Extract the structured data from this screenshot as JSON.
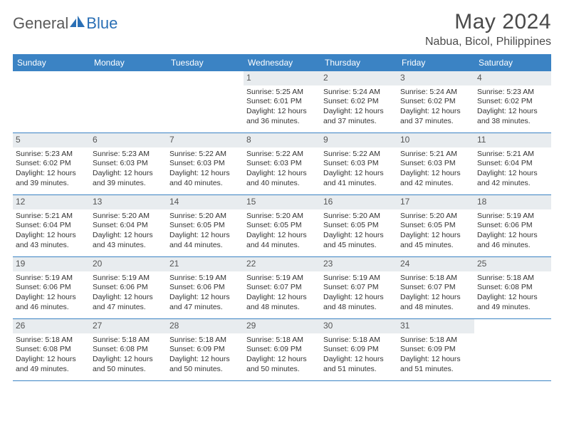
{
  "logo": {
    "text1": "General",
    "text2": "Blue"
  },
  "title": "May 2024",
  "location": "Nabua, Bicol, Philippines",
  "colors": {
    "header_bg": "#3b83c4",
    "header_text": "#ffffff",
    "daynum_bg": "#e8ecef",
    "border": "#3b83c4",
    "text": "#333333",
    "title_text": "#4a4a4a",
    "logo_gray": "#5a5a5a",
    "logo_blue": "#2a6fb5"
  },
  "weekdays": [
    "Sunday",
    "Monday",
    "Tuesday",
    "Wednesday",
    "Thursday",
    "Friday",
    "Saturday"
  ],
  "weeks": [
    [
      {
        "empty": true
      },
      {
        "empty": true
      },
      {
        "empty": true
      },
      {
        "n": "1",
        "sunrise": "Sunrise: 5:25 AM",
        "sunset": "Sunset: 6:01 PM",
        "d1": "Daylight: 12 hours",
        "d2": "and 36 minutes."
      },
      {
        "n": "2",
        "sunrise": "Sunrise: 5:24 AM",
        "sunset": "Sunset: 6:02 PM",
        "d1": "Daylight: 12 hours",
        "d2": "and 37 minutes."
      },
      {
        "n": "3",
        "sunrise": "Sunrise: 5:24 AM",
        "sunset": "Sunset: 6:02 PM",
        "d1": "Daylight: 12 hours",
        "d2": "and 37 minutes."
      },
      {
        "n": "4",
        "sunrise": "Sunrise: 5:23 AM",
        "sunset": "Sunset: 6:02 PM",
        "d1": "Daylight: 12 hours",
        "d2": "and 38 minutes."
      }
    ],
    [
      {
        "n": "5",
        "sunrise": "Sunrise: 5:23 AM",
        "sunset": "Sunset: 6:02 PM",
        "d1": "Daylight: 12 hours",
        "d2": "and 39 minutes."
      },
      {
        "n": "6",
        "sunrise": "Sunrise: 5:23 AM",
        "sunset": "Sunset: 6:03 PM",
        "d1": "Daylight: 12 hours",
        "d2": "and 39 minutes."
      },
      {
        "n": "7",
        "sunrise": "Sunrise: 5:22 AM",
        "sunset": "Sunset: 6:03 PM",
        "d1": "Daylight: 12 hours",
        "d2": "and 40 minutes."
      },
      {
        "n": "8",
        "sunrise": "Sunrise: 5:22 AM",
        "sunset": "Sunset: 6:03 PM",
        "d1": "Daylight: 12 hours",
        "d2": "and 40 minutes."
      },
      {
        "n": "9",
        "sunrise": "Sunrise: 5:22 AM",
        "sunset": "Sunset: 6:03 PM",
        "d1": "Daylight: 12 hours",
        "d2": "and 41 minutes."
      },
      {
        "n": "10",
        "sunrise": "Sunrise: 5:21 AM",
        "sunset": "Sunset: 6:03 PM",
        "d1": "Daylight: 12 hours",
        "d2": "and 42 minutes."
      },
      {
        "n": "11",
        "sunrise": "Sunrise: 5:21 AM",
        "sunset": "Sunset: 6:04 PM",
        "d1": "Daylight: 12 hours",
        "d2": "and 42 minutes."
      }
    ],
    [
      {
        "n": "12",
        "sunrise": "Sunrise: 5:21 AM",
        "sunset": "Sunset: 6:04 PM",
        "d1": "Daylight: 12 hours",
        "d2": "and 43 minutes."
      },
      {
        "n": "13",
        "sunrise": "Sunrise: 5:20 AM",
        "sunset": "Sunset: 6:04 PM",
        "d1": "Daylight: 12 hours",
        "d2": "and 43 minutes."
      },
      {
        "n": "14",
        "sunrise": "Sunrise: 5:20 AM",
        "sunset": "Sunset: 6:05 PM",
        "d1": "Daylight: 12 hours",
        "d2": "and 44 minutes."
      },
      {
        "n": "15",
        "sunrise": "Sunrise: 5:20 AM",
        "sunset": "Sunset: 6:05 PM",
        "d1": "Daylight: 12 hours",
        "d2": "and 44 minutes."
      },
      {
        "n": "16",
        "sunrise": "Sunrise: 5:20 AM",
        "sunset": "Sunset: 6:05 PM",
        "d1": "Daylight: 12 hours",
        "d2": "and 45 minutes."
      },
      {
        "n": "17",
        "sunrise": "Sunrise: 5:20 AM",
        "sunset": "Sunset: 6:05 PM",
        "d1": "Daylight: 12 hours",
        "d2": "and 45 minutes."
      },
      {
        "n": "18",
        "sunrise": "Sunrise: 5:19 AM",
        "sunset": "Sunset: 6:06 PM",
        "d1": "Daylight: 12 hours",
        "d2": "and 46 minutes."
      }
    ],
    [
      {
        "n": "19",
        "sunrise": "Sunrise: 5:19 AM",
        "sunset": "Sunset: 6:06 PM",
        "d1": "Daylight: 12 hours",
        "d2": "and 46 minutes."
      },
      {
        "n": "20",
        "sunrise": "Sunrise: 5:19 AM",
        "sunset": "Sunset: 6:06 PM",
        "d1": "Daylight: 12 hours",
        "d2": "and 47 minutes."
      },
      {
        "n": "21",
        "sunrise": "Sunrise: 5:19 AM",
        "sunset": "Sunset: 6:06 PM",
        "d1": "Daylight: 12 hours",
        "d2": "and 47 minutes."
      },
      {
        "n": "22",
        "sunrise": "Sunrise: 5:19 AM",
        "sunset": "Sunset: 6:07 PM",
        "d1": "Daylight: 12 hours",
        "d2": "and 48 minutes."
      },
      {
        "n": "23",
        "sunrise": "Sunrise: 5:19 AM",
        "sunset": "Sunset: 6:07 PM",
        "d1": "Daylight: 12 hours",
        "d2": "and 48 minutes."
      },
      {
        "n": "24",
        "sunrise": "Sunrise: 5:18 AM",
        "sunset": "Sunset: 6:07 PM",
        "d1": "Daylight: 12 hours",
        "d2": "and 48 minutes."
      },
      {
        "n": "25",
        "sunrise": "Sunrise: 5:18 AM",
        "sunset": "Sunset: 6:08 PM",
        "d1": "Daylight: 12 hours",
        "d2": "and 49 minutes."
      }
    ],
    [
      {
        "n": "26",
        "sunrise": "Sunrise: 5:18 AM",
        "sunset": "Sunset: 6:08 PM",
        "d1": "Daylight: 12 hours",
        "d2": "and 49 minutes."
      },
      {
        "n": "27",
        "sunrise": "Sunrise: 5:18 AM",
        "sunset": "Sunset: 6:08 PM",
        "d1": "Daylight: 12 hours",
        "d2": "and 50 minutes."
      },
      {
        "n": "28",
        "sunrise": "Sunrise: 5:18 AM",
        "sunset": "Sunset: 6:09 PM",
        "d1": "Daylight: 12 hours",
        "d2": "and 50 minutes."
      },
      {
        "n": "29",
        "sunrise": "Sunrise: 5:18 AM",
        "sunset": "Sunset: 6:09 PM",
        "d1": "Daylight: 12 hours",
        "d2": "and 50 minutes."
      },
      {
        "n": "30",
        "sunrise": "Sunrise: 5:18 AM",
        "sunset": "Sunset: 6:09 PM",
        "d1": "Daylight: 12 hours",
        "d2": "and 51 minutes."
      },
      {
        "n": "31",
        "sunrise": "Sunrise: 5:18 AM",
        "sunset": "Sunset: 6:09 PM",
        "d1": "Daylight: 12 hours",
        "d2": "and 51 minutes."
      },
      {
        "empty": true
      }
    ]
  ]
}
